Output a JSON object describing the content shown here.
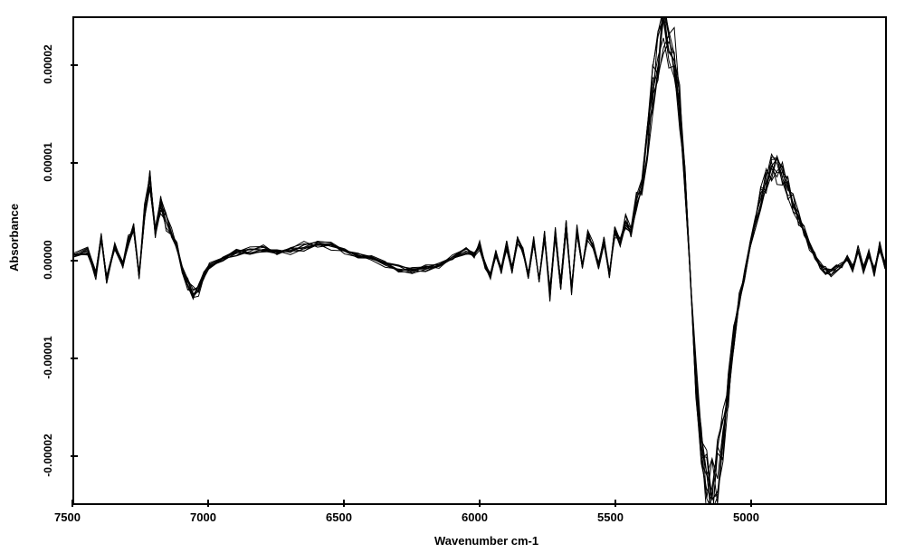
{
  "chart": {
    "type": "line",
    "xlabel": "Wavenumber cm-1",
    "ylabel": "Absorbance",
    "title_fontsize": 13,
    "label_fontsize": 13,
    "tick_fontsize": 12,
    "background_color": "#ffffff",
    "border_color": "#000000",
    "line_color": "#000000",
    "line_width": 1,
    "xlim": [
      7500,
      4500
    ],
    "ylim": [
      -2.5e-05,
      2.5e-05
    ],
    "x_direction": "reversed",
    "xticks": [
      7500,
      7000,
      6500,
      6000,
      5500,
      5000
    ],
    "xtick_labels": [
      "7500",
      "7000",
      "6500",
      "6000",
      "5500",
      "5000"
    ],
    "yticks": [
      -2e-05,
      -1e-05,
      0.0,
      1e-05,
      2e-05
    ],
    "ytick_labels": [
      "-0.00002",
      "-0.00001",
      "0.00000",
      "0.00001",
      "0.00002"
    ],
    "grid": false,
    "n_overlaid_traces": 10,
    "trace_spread_factor": 0.15,
    "base_trace": {
      "x": [
        7500,
        7450,
        7420,
        7400,
        7380,
        7350,
        7320,
        7300,
        7280,
        7260,
        7240,
        7220,
        7200,
        7180,
        7160,
        7140,
        7120,
        7100,
        7080,
        7060,
        7040,
        7020,
        7000,
        6950,
        6900,
        6850,
        6800,
        6750,
        6700,
        6650,
        6600,
        6550,
        6500,
        6450,
        6400,
        6350,
        6300,
        6250,
        6200,
        6150,
        6100,
        6050,
        6020,
        6000,
        5980,
        5960,
        5940,
        5920,
        5900,
        5880,
        5860,
        5840,
        5820,
        5800,
        5780,
        5760,
        5740,
        5720,
        5700,
        5680,
        5660,
        5640,
        5620,
        5600,
        5580,
        5560,
        5540,
        5520,
        5500,
        5480,
        5460,
        5440,
        5420,
        5400,
        5380,
        5360,
        5340,
        5320,
        5300,
        5280,
        5260,
        5240,
        5220,
        5200,
        5180,
        5160,
        5140,
        5120,
        5100,
        5080,
        5060,
        5040,
        5020,
        5000,
        4980,
        4960,
        4940,
        4920,
        4900,
        4880,
        4860,
        4840,
        4820,
        4800,
        4780,
        4760,
        4740,
        4720,
        4700,
        4680,
        4660,
        4640,
        4620,
        4600,
        4580,
        4560,
        4540,
        4520,
        4500
      ],
      "y": [
        5e-07,
        1e-06,
        -1.5e-06,
        2.5e-06,
        -2e-06,
        1.5e-06,
        -5e-07,
        2e-06,
        3.5e-06,
        -1.5e-06,
        5e-06,
        8e-06,
        3e-06,
        5.5e-06,
        4e-06,
        3e-06,
        1.5e-06,
        -1e-06,
        -2.5e-06,
        -3.5e-06,
        -3e-06,
        -1.5e-06,
        -5e-07,
        3e-07,
        8e-07,
        1e-06,
        1.2e-06,
        8e-07,
        1e-06,
        1.5e-06,
        1.8e-06,
        1.5e-06,
        1e-06,
        5e-07,
        2e-07,
        -3e-07,
        -8e-07,
        -1e-06,
        -8e-07,
        -5e-07,
        3e-07,
        1e-06,
        5e-07,
        1.5e-06,
        -5e-07,
        -1.5e-06,
        8e-07,
        -1e-06,
        1.5e-06,
        -1e-06,
        2e-06,
        1e-06,
        -1.5e-06,
        2e-06,
        -2e-06,
        2.5e-06,
        -3.5e-06,
        3e-06,
        -2.5e-06,
        3.5e-06,
        -3e-06,
        3e-06,
        -5e-07,
        2.5e-06,
        1.5e-06,
        -5e-07,
        2e-06,
        -1.5e-06,
        3e-06,
        2e-06,
        4e-06,
        3e-06,
        6e-06,
        8e-06,
        1.2e-05,
        1.8e-05,
        2.2e-05,
        2.4e-05,
        2.3e-05,
        2.1e-05,
        1.6e-05,
        8e-06,
        -2e-06,
        -1.2e-05,
        -1.9e-05,
        -2.3e-05,
        -2.35e-05,
        -2.2e-05,
        -1.8e-05,
        -1.3e-05,
        -8e-06,
        -4e-06,
        -1.5e-06,
        1.5e-06,
        4e-06,
        6.5e-06,
        8.5e-06,
        9.5e-06,
        9.5e-06,
        9e-06,
        7.5e-06,
        6e-06,
        4.5e-06,
        3e-06,
        1.5e-06,
        5e-07,
        -5e-07,
        -1e-06,
        -1.2e-06,
        -8e-07,
        -5e-07,
        3e-07,
        -8e-07,
        1.2e-06,
        -1e-06,
        8e-07,
        -1.2e-06,
        1.5e-06,
        -5e-07
      ]
    }
  }
}
